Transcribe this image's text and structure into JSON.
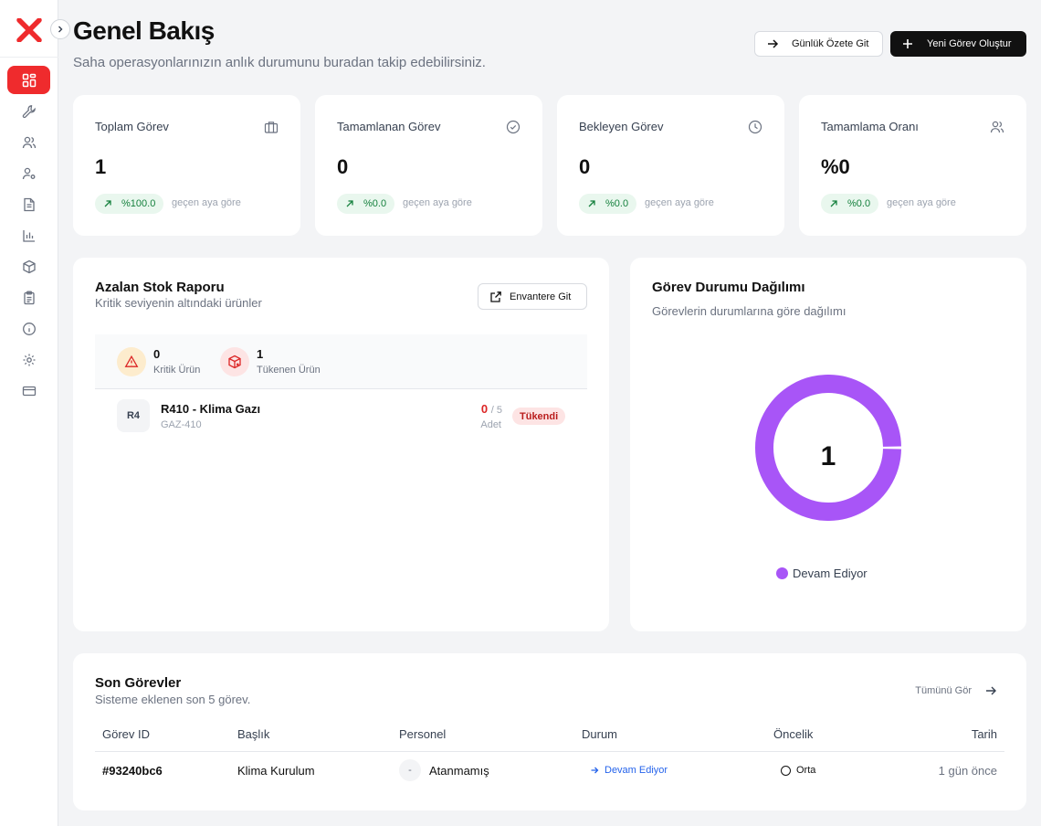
{
  "header": {
    "title": "Genel Bakış",
    "subtitle": "Saha operasyonlarınızın anlık durumunu buradan takip edebilirsiniz.",
    "daily_summary_label": "Günlük Özete Git",
    "new_task_label": "Yeni Görev Oluştur"
  },
  "sidebar": {
    "items": [
      {
        "icon": "dashboard-icon",
        "active": true
      },
      {
        "icon": "wrench-icon"
      },
      {
        "icon": "users-icon"
      },
      {
        "icon": "user-settings-icon"
      },
      {
        "icon": "document-icon"
      },
      {
        "icon": "bar-chart-icon"
      },
      {
        "icon": "package-icon"
      },
      {
        "icon": "clipboard-icon"
      },
      {
        "icon": "info-icon"
      },
      {
        "icon": "gear-icon"
      },
      {
        "icon": "credit-card-icon"
      }
    ]
  },
  "stats": [
    {
      "label": "Toplam Görev",
      "value": "1",
      "trend": "%100.0",
      "note": "geçen aya göre",
      "icon": "briefcase-icon"
    },
    {
      "label": "Tamamlanan Görev",
      "value": "0",
      "trend": "%0.0",
      "note": "geçen aya göre",
      "icon": "check-circle-icon"
    },
    {
      "label": "Bekleyen Görev",
      "value": "0",
      "trend": "%0.0",
      "note": "geçen aya göre",
      "icon": "clock-icon"
    },
    {
      "label": "Tamamlama Oranı",
      "value": "%0",
      "trend": "%0.0",
      "note": "geçen aya göre",
      "icon": "users-icon"
    }
  ],
  "stock": {
    "title": "Azalan Stok Raporu",
    "subtitle": "Kritik seviyenin altındaki ürünler",
    "inventory_button": "Envantere Git",
    "critical_count": "0",
    "critical_label": "Kritik Ürün",
    "out_count": "1",
    "out_label": "Tükenen Ürün",
    "items": [
      {
        "avatar": "R4",
        "name": "R410 - Klima Gazı",
        "code": "GAZ-410",
        "current": "0",
        "max": "/ 5",
        "unit": "Adet",
        "status": "Tükendi"
      }
    ]
  },
  "distribution": {
    "title": "Görev Durumu Dağılımı",
    "subtitle": "Görevlerin durumlarına göre dağılımı",
    "total": "1"
  },
  "chart_data": {
    "type": "pie",
    "categories": [
      "Devam Ediyor"
    ],
    "values": [
      1
    ],
    "colors": [
      "#a855f7"
    ],
    "title": "Görev Durumu Dağılımı",
    "legend": "bottom"
  },
  "tasks": {
    "title": "Son Görevler",
    "subtitle": "Sisteme eklenen son 5 görev.",
    "see_all": "Tümünü Gör",
    "columns": [
      "Görev ID",
      "Başlık",
      "Personel",
      "Durum",
      "Öncelik",
      "Tarih"
    ],
    "rows": [
      {
        "id": "#93240bc6",
        "title": "Klima Kurulum",
        "avatar": "-",
        "personnel": "Atanmamış",
        "status": "Devam Ediyor",
        "priority": "Orta",
        "date": "1 gün önce"
      }
    ]
  },
  "colors": {
    "accent": "#ef2b2d",
    "chart_purple": "#a855f7",
    "trend_green": "#15803d",
    "status_blue": "#2563eb"
  }
}
